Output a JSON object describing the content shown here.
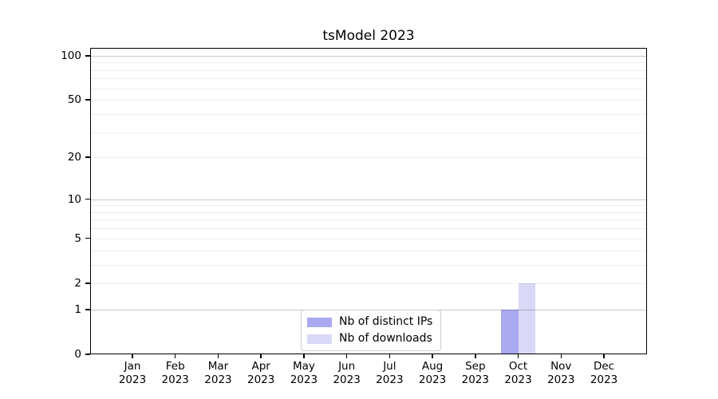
{
  "chart_data": {
    "type": "bar",
    "title": "tsModel 2023",
    "x": {
      "months": [
        "Jan",
        "Feb",
        "Mar",
        "Apr",
        "May",
        "Jun",
        "Jul",
        "Aug",
        "Sep",
        "Oct",
        "Nov",
        "Dec"
      ],
      "year": "2023"
    },
    "series": [
      {
        "name": "Nb of distinct IPs",
        "color": "#aaaaf0",
        "values": [
          0,
          0,
          0,
          0,
          0,
          0,
          0,
          0,
          0,
          1,
          0,
          0
        ]
      },
      {
        "name": "Nb of downloads",
        "color": "#d9d9f7",
        "values": [
          0,
          0,
          0,
          0,
          0,
          0,
          0,
          0,
          0,
          2,
          0,
          0
        ]
      }
    ],
    "yscale": "log1p",
    "y_ticks": [
      0,
      1,
      2,
      5,
      10,
      20,
      50,
      100
    ],
    "ylim": [
      0,
      113
    ],
    "grid": {
      "major_levels": [
        1,
        10,
        100
      ],
      "minor_levels": [
        2,
        3,
        4,
        5,
        6,
        7,
        8,
        9,
        20,
        30,
        40,
        50,
        60,
        70,
        80,
        90
      ],
      "major_color": "rgba(0,0,0,0.22)",
      "minor_color": "rgba(0,0,0,0.07)"
    },
    "legend_position": "lower center",
    "background": "#ffffff",
    "axis_color": "#000000"
  }
}
